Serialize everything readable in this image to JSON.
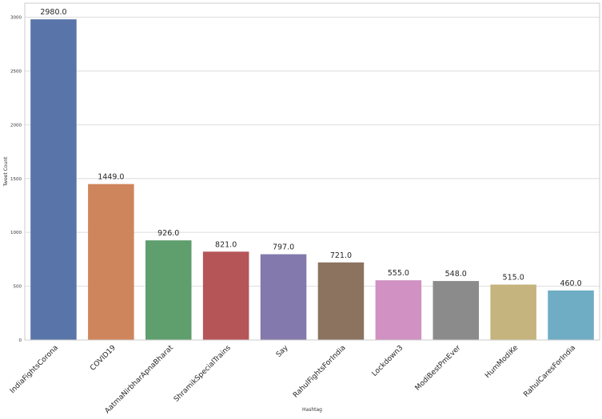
{
  "chart_data": {
    "type": "bar",
    "xlabel": "Hashtag",
    "ylabel": "Tweet Count",
    "categories": [
      "IndiaFightsCorona",
      "COVID19",
      "AatmaNirbharApnaBharat",
      "ShramikSpecialTrains",
      "Say",
      "RahulFightsForIndia",
      "Lockdown3",
      "ModiBestPmEver",
      "HumModiKe",
      "RahulCaresForIndia"
    ],
    "values": [
      2980.0,
      1449.0,
      926.0,
      821.0,
      797.0,
      721.0,
      555.0,
      548.0,
      515.0,
      460.0
    ],
    "value_labels": [
      "2980.0",
      "1449.0",
      "926.0",
      "821.0",
      "797.0",
      "721.0",
      "555.0",
      "548.0",
      "515.0",
      "460.0"
    ],
    "yticks": [
      0,
      500,
      1000,
      1500,
      2000,
      2500,
      3000
    ],
    "ylim": [
      0,
      3130
    ],
    "grid": true,
    "colors": [
      "#5874a8",
      "#cf855c",
      "#5f9e6d",
      "#b65558",
      "#8479ad",
      "#8b7360",
      "#d191c2",
      "#8b8b8b",
      "#c5b47d",
      "#6fadc4"
    ],
    "gridcolor": "#dddddd",
    "bordercolor": "#cccccc"
  }
}
